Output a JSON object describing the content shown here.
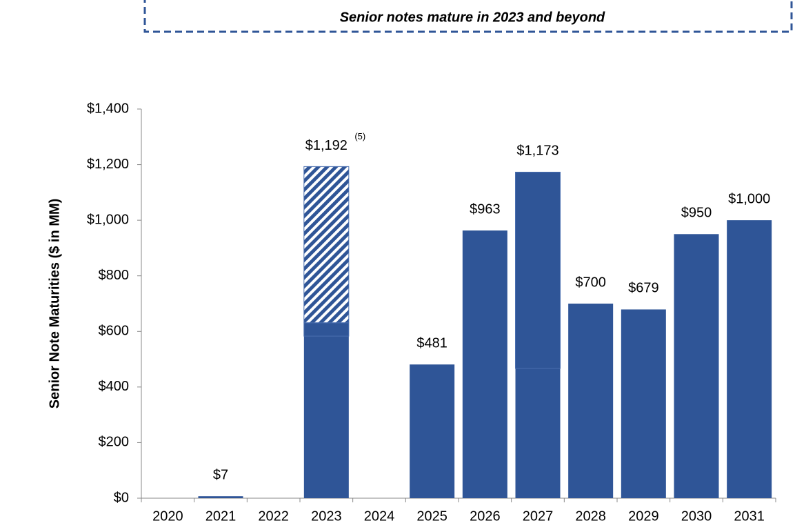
{
  "chart_data": {
    "type": "stacked_bar",
    "title": "Senior notes mature in 2023 and beyond",
    "y_label": "Senior Note Maturities ($ in MM)",
    "categories": [
      "2020",
      "2021",
      "2022",
      "2023",
      "2024",
      "2025",
      "2026",
      "2027",
      "2028",
      "2029",
      "2030",
      "2031"
    ],
    "series": [
      {
        "color": "#2f5597",
        "values": [
          0,
          7,
          0,
          583,
          0,
          481,
          963,
          467,
          700,
          679,
          950,
          1000
        ]
      },
      {
        "color": "#2f5597",
        "values": [
          0,
          0,
          0,
          48,
          0,
          0,
          0,
          706,
          0,
          0,
          0,
          0
        ]
      },
      {
        "color": "#2f5597",
        "pattern": "hatch",
        "values": [
          0,
          0,
          0,
          562,
          0,
          0,
          0,
          0,
          0,
          0,
          0,
          0
        ]
      }
    ],
    "totals": [
      null,
      7,
      null,
      1192,
      null,
      481,
      963,
      1173,
      700,
      679,
      950,
      1000
    ],
    "total_labels": [
      null,
      "$7",
      null,
      "$1,192",
      null,
      "$481",
      "$963",
      "$1,173",
      "$700",
      "$679",
      "$950",
      "$1,000"
    ],
    "annotation": {
      "category_index": 3,
      "text": "(5)"
    },
    "ylim": [
      0,
      1400
    ],
    "yticks": [
      {
        "value": 0,
        "label": "$0"
      },
      {
        "value": 200,
        "label": "$200"
      },
      {
        "value": 400,
        "label": "$400"
      },
      {
        "value": 600,
        "label": "$600"
      },
      {
        "value": 800,
        "label": "$800"
      },
      {
        "value": 1000,
        "label": "$1,000"
      },
      {
        "value": 1200,
        "label": "$1,200"
      },
      {
        "value": 1400,
        "label": "$1,400"
      }
    ],
    "grid": false
  }
}
